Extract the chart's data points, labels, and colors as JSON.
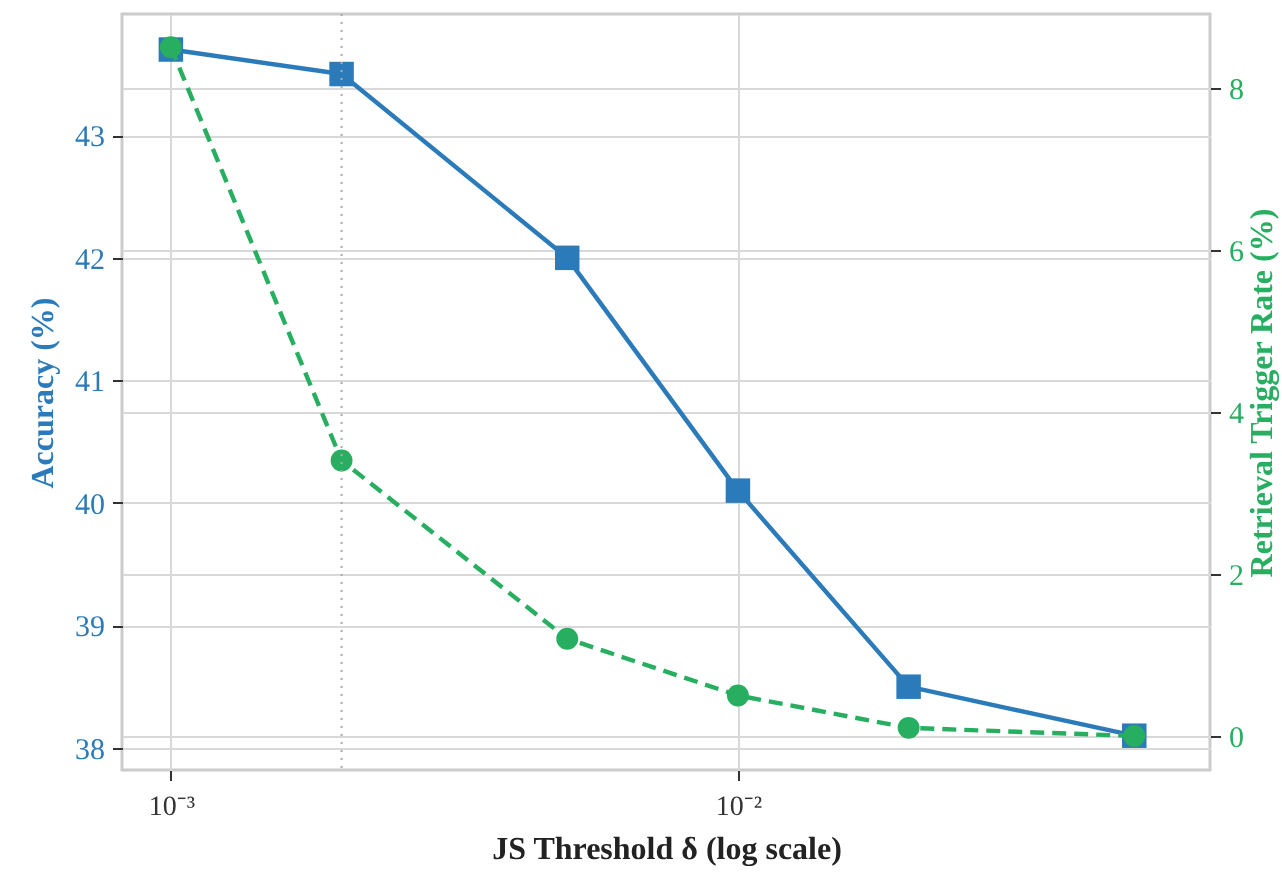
{
  "chart_data": {
    "type": "line",
    "xlabel": "JS Threshold δ (log scale)",
    "ylabel": "Accuracy (%)",
    "y2label": "Retrieval Trigger Rate (%)",
    "x": [
      0.001,
      0.002,
      0.005,
      0.01,
      0.02,
      0.05
    ],
    "series": [
      {
        "color": "#2b7bba",
        "values": [
          43.7,
          43.5,
          42.0,
          40.1,
          38.5,
          38.1
        ],
        "marker": "square",
        "line_style": "solid"
      },
      {
        "color": "#27ae60",
        "values": [
          8.5,
          3.4,
          1.2,
          0.5,
          0.1,
          0.0
        ],
        "marker": "circle",
        "line_style": "dashed",
        "axis": "y2"
      }
    ],
    "log": "x",
    "xlim": [
      0.00082,
      0.068
    ],
    "xticks": [
      {
        "value": 0.001,
        "label": "10⁻³"
      },
      {
        "value": 0.01,
        "label": "10⁻²"
      }
    ],
    "ylim": [
      37.82,
      43.99
    ],
    "yticks": [
      38,
      39,
      40,
      41,
      42,
      43
    ],
    "y2lim": [
      -0.42,
      8.91
    ],
    "y2ticks": [
      0,
      2,
      4,
      6,
      8
    ],
    "grid": true,
    "ref_lines": [
      {
        "axis": "x",
        "value": 0.002,
        "color": "#aaaaaa",
        "line_style": "dotted"
      }
    ]
  }
}
